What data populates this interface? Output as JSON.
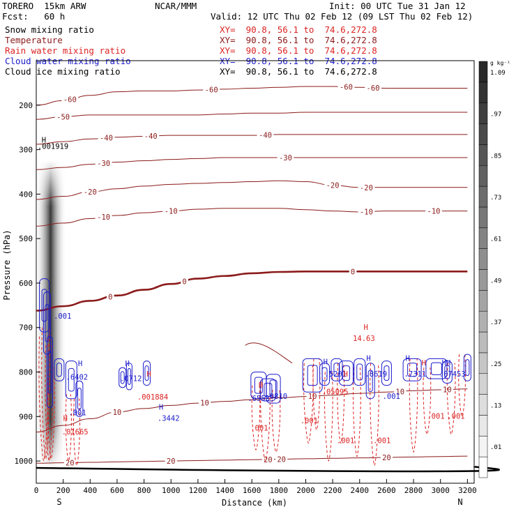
{
  "header": {
    "model": "TORERO  15km ARW",
    "center": "NCAR/MMM",
    "init": "Init: 00 UTC Tue 31 Jan 12",
    "fcst": "Fcst:   60 h",
    "valid": "Valid: 12 UTC Thu 02 Feb 12 (09 LST Thu 02 Feb 12)"
  },
  "fields": [
    {
      "name": "Snow mixing ratio",
      "xy": "XY=  90.8, 56.1 to  74.6,272.8",
      "color": "#000000"
    },
    {
      "name": "Temperature",
      "xy": "XY=  90.8, 56.1 to  74.6,272.8",
      "color": "#8b1a1a"
    },
    {
      "name": "Rain water mixing ratio",
      "xy": "XY=  90.8, 56.1 to  74.6,272.8",
      "color": "#dd2222"
    },
    {
      "name": "Cloud water mixing ratio",
      "xy": "XY=  90.8, 56.1 to  74.6,272.8",
      "color": "#1a1acc"
    },
    {
      "name": "Cloud ice mixing ratio",
      "xy": "XY=  90.8, 56.1 to  74.6,272.8",
      "color": "#000000"
    }
  ],
  "chart_data": {
    "type": "heatmap",
    "title": "",
    "xlabel": "Distance (km)",
    "ylabel": "Pressure (hPa)",
    "xlim": [
      0,
      3250
    ],
    "ylim": [
      1050,
      100
    ],
    "x_ticks": [
      0,
      200,
      400,
      600,
      800,
      1000,
      1200,
      1400,
      1600,
      1800,
      2000,
      2200,
      2400,
      2600,
      2800,
      3000,
      3200
    ],
    "y_ticks": [
      200,
      300,
      400,
      500,
      600,
      700,
      800,
      900,
      1000
    ],
    "x_end_labels": {
      "left": "S",
      "right": "N"
    },
    "colorbar": {
      "unit": "g kg⁻¹",
      "ticks": [
        ".01",
        ".13",
        ".25",
        ".37",
        ".49",
        ".61",
        ".73",
        ".85",
        ".97",
        "1.09"
      ]
    },
    "temperature_isotherms": [
      {
        "value": -60,
        "label_x": [
          250,
          1300,
          2300,
          2500
        ],
        "pressures": [
          200,
          190,
          178,
          170,
          168,
          168,
          166,
          164,
          162,
          160,
          158,
          158,
          160,
          162,
          162,
          162,
          162
        ]
      },
      {
        "value": -50,
        "label_x": [
          200
        ],
        "pressures": [
          232,
          226,
          222,
          222,
          222,
          222,
          222,
          220,
          218,
          218,
          216,
          216,
          216,
          216,
          216,
          216,
          216
        ]
      },
      {
        "value": -40,
        "label_x": [
          520,
          850,
          1700
        ],
        "pressures": [
          288,
          282,
          276,
          272,
          270,
          268,
          268,
          268,
          268,
          266,
          266,
          266,
          266,
          266,
          266,
          266,
          266
        ]
      },
      {
        "value": -30,
        "label_x": [
          500,
          1850
        ],
        "pressures": [
          345,
          340,
          333,
          328,
          325,
          322,
          320,
          318,
          318,
          318,
          318,
          318,
          318,
          318,
          318,
          318,
          318
        ]
      },
      {
        "value": -20,
        "label_x": [
          400,
          2200,
          2450
        ],
        "pressures": [
          412,
          405,
          395,
          388,
          382,
          378,
          376,
          374,
          372,
          370,
          372,
          380,
          385,
          385,
          385,
          385,
          385
        ]
      },
      {
        "value": -10,
        "label_x": [
          500,
          1000,
          2450,
          2950
        ],
        "pressures": [
          472,
          465,
          455,
          448,
          442,
          438,
          434,
          432,
          432,
          432,
          435,
          438,
          440,
          438,
          438,
          438,
          438
        ]
      },
      {
        "value": 0,
        "label_x": [
          550,
          1100,
          2350
        ],
        "pressures": [
          662,
          652,
          640,
          628,
          615,
          602,
          590,
          584,
          578,
          575,
          574,
          574,
          574,
          574,
          574,
          574,
          574
        ]
      },
      {
        "value": 10,
        "label_x": [
          600,
          1250,
          2050,
          2700,
          3050
        ],
        "pressures": [
          935,
          920,
          905,
          890,
          882,
          875,
          870,
          866,
          862,
          858,
          855,
          852,
          848,
          845,
          842,
          840,
          838
        ]
      },
      {
        "value": 20,
        "label_x": [
          250,
          1000,
          1720,
          1820,
          2600
        ],
        "pressures": [
          1005,
          1004,
          1003,
          1002,
          1001,
          1000,
          999,
          998,
          997,
          996,
          995,
          994,
          993,
          992,
          991,
          990,
          989
        ]
      }
    ],
    "annotations": [
      {
        "text": "H",
        "x": 40,
        "p": 284,
        "color": "#000000"
      },
      {
        "text": ".001919",
        "x": 10,
        "p": 298,
        "color": "#000000"
      },
      {
        "text": "H",
        "x": 310,
        "p": 787,
        "color": "#1a1acc"
      },
      {
        "text": ".6402",
        "x": 220,
        "p": 817,
        "color": "#1a1acc"
      },
      {
        "text": "H",
        "x": 660,
        "p": 787,
        "color": "#1a1acc"
      },
      {
        "text": ".0712",
        "x": 620,
        "p": 820,
        "color": "#1a1acc"
      },
      {
        "text": "H",
        "x": 820,
        "p": 810,
        "color": "#dd2222"
      },
      {
        "text": ".001884",
        "x": 750,
        "p": 862,
        "color": "#dd2222"
      },
      {
        "text": "H",
        "x": 910,
        "p": 885,
        "color": "#1a1acc"
      },
      {
        "text": ".3442",
        "x": 900,
        "p": 910,
        "color": "#1a1acc"
      },
      {
        "text": "H",
        "x": 200,
        "p": 910,
        "color": "#dd2222"
      },
      {
        "text": ".01665",
        "x": 190,
        "p": 940,
        "color": "#dd2222"
      },
      {
        "text": ".001",
        "x": 240,
        "p": 897,
        "color": "#1a1acc"
      },
      {
        "text": ".001",
        "x": 130,
        "p": 680,
        "color": "#1a1acc"
      },
      {
        "text": "H",
        "x": 1650,
        "p": 835,
        "color": "#dd2222"
      },
      {
        "text": ".6553",
        "x": 1570,
        "p": 865,
        "color": "#1a1acc"
      },
      {
        "text": ".0810",
        "x": 1700,
        "p": 860,
        "color": "#1a1acc"
      },
      {
        "text": ".001",
        "x": 1590,
        "p": 932,
        "color": "#dd2222"
      },
      {
        "text": "H",
        "x": 2130,
        "p": 783,
        "color": "#1a1acc"
      },
      {
        "text": ".5201",
        "x": 2140,
        "p": 810,
        "color": "#1a1acc"
      },
      {
        "text": ".05095",
        "x": 2120,
        "p": 850,
        "color": "#dd2222"
      },
      {
        "text": "H",
        "x": 2280,
        "p": 810,
        "color": "#dd2222"
      },
      {
        "text": "H",
        "x": 2450,
        "p": 775,
        "color": "#1a1acc"
      },
      {
        "text": ".8619",
        "x": 2440,
        "p": 810,
        "color": "#1a1acc"
      },
      {
        "text": ".001",
        "x": 2570,
        "p": 860,
        "color": "#1a1acc"
      },
      {
        "text": "H",
        "x": 2430,
        "p": 705,
        "color": "#dd2222"
      },
      {
        "text": "14.63",
        "x": 2350,
        "p": 730,
        "color": "#dd2222"
      },
      {
        "text": ".001",
        "x": 1960,
        "p": 915,
        "color": "#dd2222"
      },
      {
        "text": ".001",
        "x": 2230,
        "p": 960,
        "color": "#dd2222"
      },
      {
        "text": ".001",
        "x": 2500,
        "p": 960,
        "color": "#dd2222"
      },
      {
        "text": "H",
        "x": 2740,
        "p": 775,
        "color": "#1a1acc"
      },
      {
        "text": ".7311",
        "x": 2730,
        "p": 810,
        "color": "#1a1acc"
      },
      {
        "text": "H",
        "x": 2860,
        "p": 785,
        "color": "#dd2222"
      },
      {
        "text": "HH",
        "x": 3010,
        "p": 785,
        "color": "#1a1acc"
      },
      {
        "text": ".07453",
        "x": 2990,
        "p": 810,
        "color": "#1a1acc"
      },
      {
        "text": ".001",
        "x": 2900,
        "p": 905,
        "color": "#dd2222"
      },
      {
        "text": ".001",
        "x": 3050,
        "p": 905,
        "color": "#dd2222"
      }
    ]
  }
}
